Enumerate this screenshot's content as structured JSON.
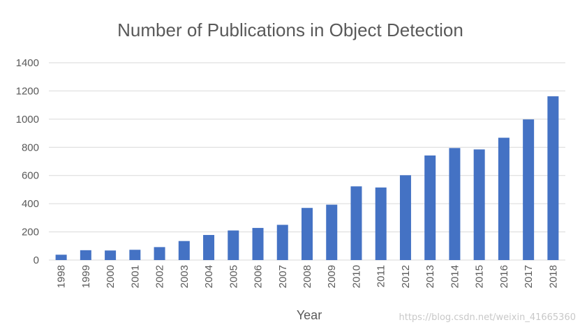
{
  "chart_data": {
    "type": "bar",
    "title": "Number of Publications in Object Detection",
    "xlabel": "Year",
    "ylabel": "",
    "ylim": [
      0,
      1400
    ],
    "yticks": [
      0,
      200,
      400,
      600,
      800,
      1000,
      1200,
      1400
    ],
    "grid": true,
    "legend": "none",
    "categories": [
      "1998",
      "1999",
      "2000",
      "2001",
      "2002",
      "2003",
      "2004",
      "2005",
      "2006",
      "2007",
      "2008",
      "2009",
      "2010",
      "2011",
      "2012",
      "2013",
      "2014",
      "2015",
      "2016",
      "2017",
      "2018"
    ],
    "values": [
      38,
      70,
      68,
      73,
      92,
      135,
      178,
      210,
      228,
      250,
      370,
      393,
      523,
      515,
      602,
      742,
      795,
      785,
      868,
      998,
      1162
    ],
    "bar_color": "#4472c4"
  },
  "watermark": "https://blog.csdn.net/weixin_41665360"
}
